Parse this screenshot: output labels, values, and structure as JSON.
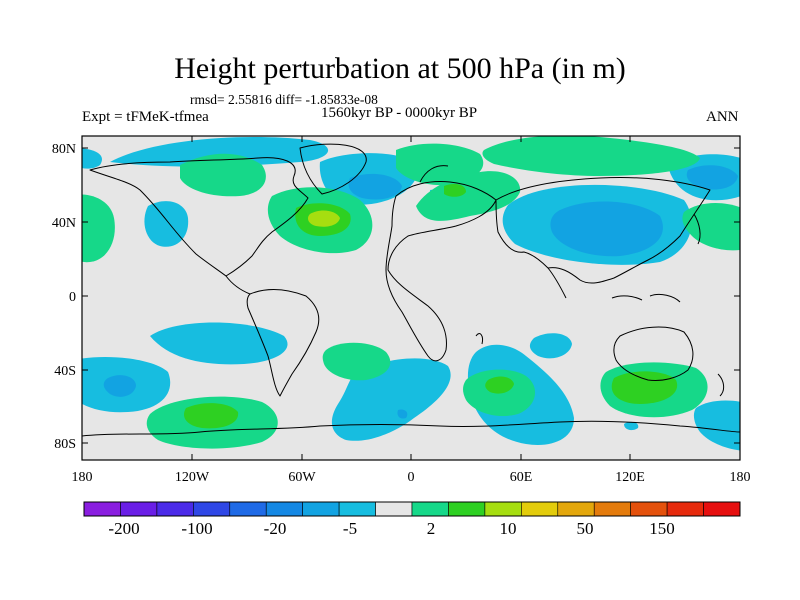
{
  "title": "Height perturbation at 500 hPa (in m)",
  "stats": "rmsd= 2.55816 diff= -1.85833e-08",
  "experiment": "Expt = tFMeK-tfmea",
  "period": "1560kyr BP - 0000kyr BP",
  "season": "ANN",
  "axes": {
    "lat_ticks": [
      "80N",
      "40N",
      "0",
      "40S",
      "80S"
    ],
    "lon_ticks": [
      "180",
      "120W",
      "60W",
      "0",
      "60E",
      "120E",
      "180"
    ]
  },
  "colorbar": {
    "labels": [
      "-200",
      "-100",
      "-20",
      "-5",
      "2",
      "10",
      "50",
      "150"
    ],
    "colors": [
      "#8a1ee0",
      "#6a1ee6",
      "#4b2be8",
      "#2f47e6",
      "#1f6ae6",
      "#1488e4",
      "#12a3e2",
      "#17bde0",
      "#e6e6e6",
      "#16d889",
      "#2ed022",
      "#a6de10",
      "#e3cc0c",
      "#e3a70c",
      "#e47b0c",
      "#e4510c",
      "#e62a0c",
      "#e60f0f"
    ]
  },
  "colors": {
    "missing_grey": "#e6e6e6",
    "coast": "#000000"
  }
}
